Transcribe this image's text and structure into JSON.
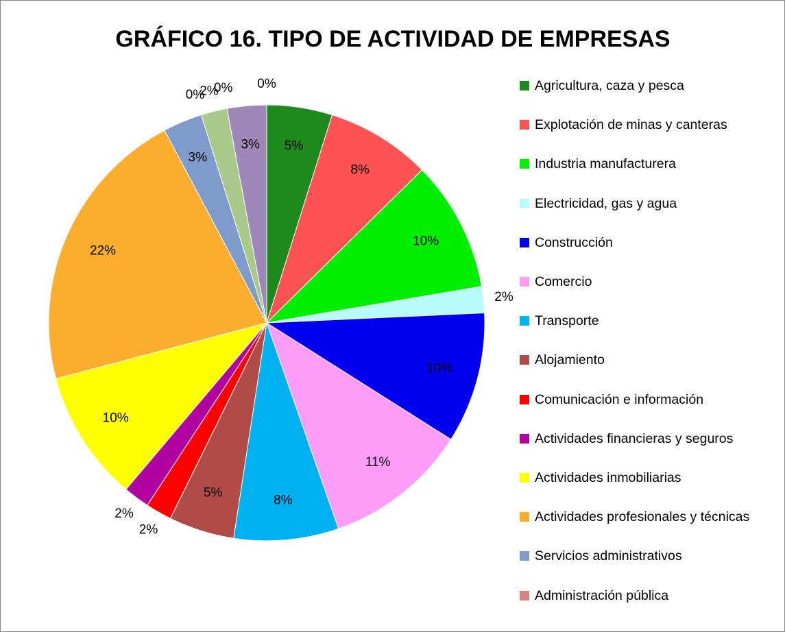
{
  "chart_data": {
    "type": "pie",
    "title": "GRÁFICO 16.  TIPO DE ACTIVIDAD DE EMPRESAS",
    "categories": [
      "Agricultura, caza y pesca",
      "Explotación de minas y canteras",
      "Industria manufacturera",
      "Electricidad, gas y agua",
      "Construcción",
      "Comercio",
      "Transporte",
      "Alojamiento",
      "Comunicación e información",
      "Actividades financieras y seguros",
      "Actividades inmobiliarias",
      "Actividades profesionales y técnicas",
      "Servicios administrativos",
      "Administración pública",
      null,
      null,
      null,
      null
    ],
    "values": [
      5,
      8,
      10,
      2,
      10,
      11,
      8,
      5,
      2,
      2,
      10,
      22,
      3,
      0,
      2,
      0,
      3,
      0
    ],
    "value_labels": [
      "5%",
      "8%",
      "10%",
      "2%",
      "10%",
      "11%",
      "8%",
      "5%",
      "2%",
      "2%",
      "10%",
      "22%",
      "3%",
      "0%",
      "2%",
      "0%",
      "3%",
      "0%"
    ],
    "colors": [
      "#1e8a1e",
      "#ff5252",
      "#00ee00",
      "#b8fbfb",
      "#0000ee",
      "#ff9cf7",
      "#00b0ef",
      "#b14b48",
      "#ff0000",
      "#b1009f",
      "#ffff00",
      "#fbae2e",
      "#7f9bcb",
      "#d88383",
      "#a8c98a",
      "#9f88b8",
      "#9f88b8",
      "#999999"
    ],
    "legend": "right"
  }
}
